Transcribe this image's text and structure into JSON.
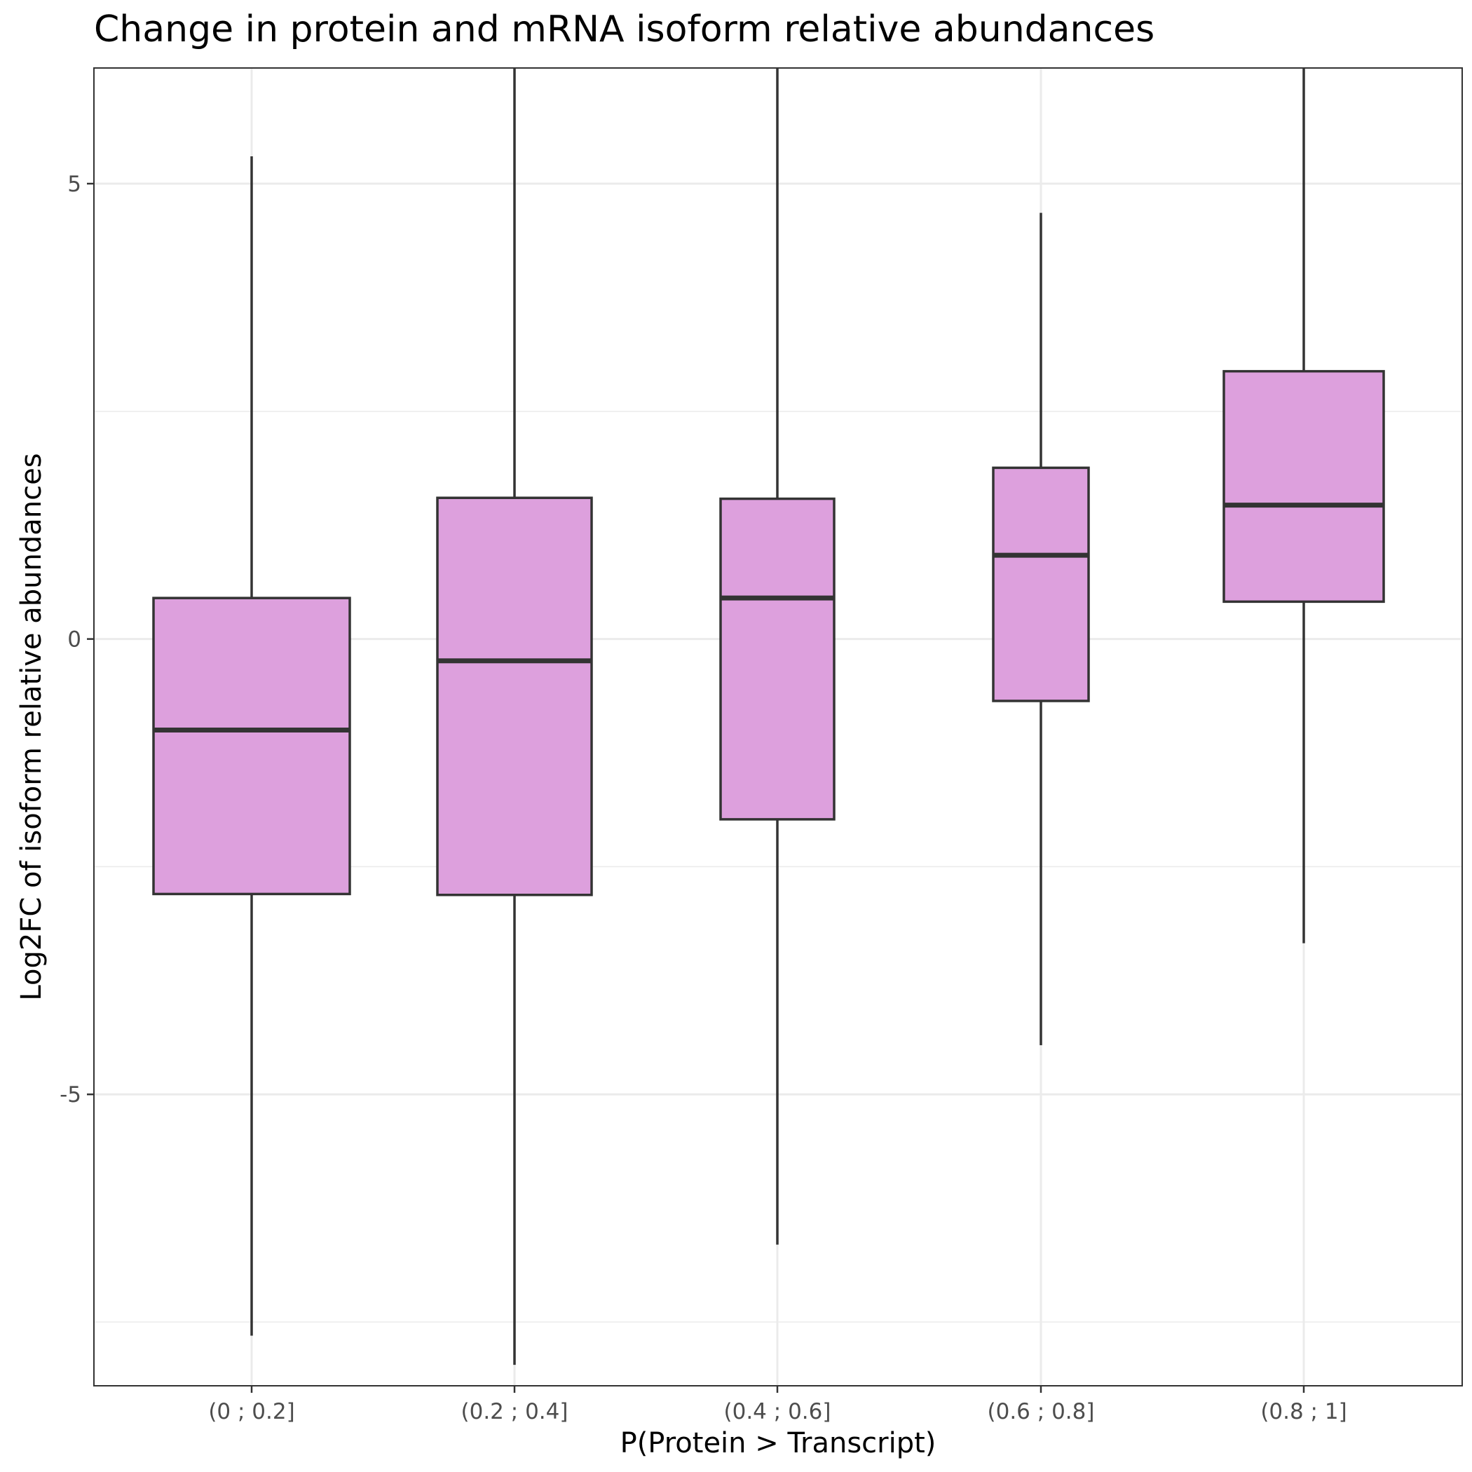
{
  "chart_data": {
    "type": "box",
    "title": "Change in protein and mRNA isoform relative abundances",
    "xlabel": "P(Protein > Transcript)",
    "ylabel": "Log2FC of isoform relative abundances",
    "ylim": [
      -8.2,
      6.27
    ],
    "yticks": [
      {
        "value": 5,
        "label": "5"
      },
      {
        "value": 0,
        "label": "0"
      },
      {
        "value": -5,
        "label": "-5"
      }
    ],
    "minor_gridlines": [
      2.5,
      -2.5,
      -7.5
    ],
    "grid": true,
    "fill_color": "#DDA0DD",
    "line_color": "#333333",
    "categories": [
      "(0 ; 0.2]",
      "(0.2 ; 0.4]",
      "(0.4 ; 0.6]",
      "(0.6 ; 0.8]",
      "(0.8 ; 1]"
    ],
    "boxes": [
      {
        "category": "(0 ; 0.2]",
        "whisker_low": -7.65,
        "q1": -2.8,
        "median": -1.0,
        "q3": 0.45,
        "whisker_high": 5.3
      },
      {
        "category": "(0.2 ; 0.4]",
        "whisker_low": -7.97,
        "q1": -2.81,
        "median": -0.24,
        "q3": 1.55,
        "whisker_high": 6.27
      },
      {
        "category": "(0.4 ; 0.6]",
        "whisker_low": -6.65,
        "q1": -1.98,
        "median": 0.45,
        "q3": 1.54,
        "whisker_high": 6.27
      },
      {
        "category": "(0.6 ; 0.8]",
        "whisker_low": -4.46,
        "q1": -0.68,
        "median": 0.92,
        "q3": 1.88,
        "whisker_high": 4.68
      },
      {
        "category": "(0.8 ; 1]",
        "whisker_low": -3.34,
        "q1": 0.41,
        "median": 1.47,
        "q3": 2.94,
        "whisker_high": 6.27
      }
    ]
  }
}
